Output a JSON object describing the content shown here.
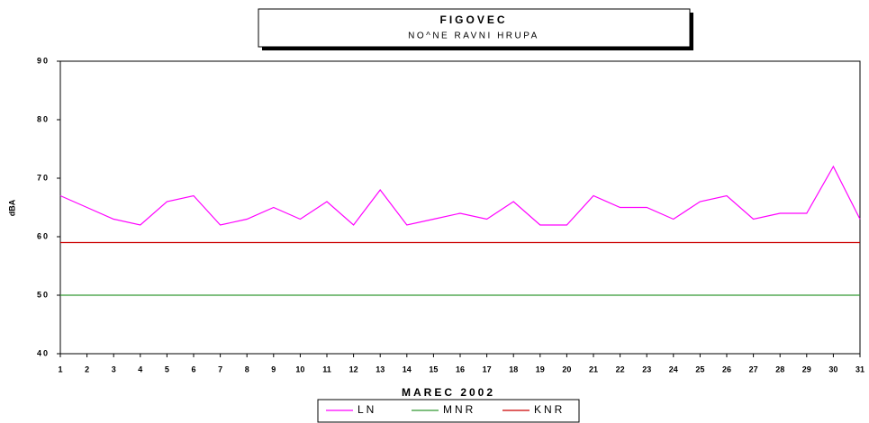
{
  "chart_data": {
    "type": "line",
    "title": "FIGOVEC",
    "subtitle": "NO^NE RAVNI HRUPA",
    "x_label": "MAREC 2002",
    "y_label": "dBA",
    "x": [
      1,
      2,
      3,
      4,
      5,
      6,
      7,
      8,
      9,
      10,
      11,
      12,
      13,
      14,
      15,
      16,
      17,
      18,
      19,
      20,
      21,
      22,
      23,
      24,
      25,
      26,
      27,
      28,
      29,
      30,
      31
    ],
    "series": [
      {
        "name": "LN",
        "color": "#ff00ff",
        "values": [
          67,
          65,
          63,
          62,
          66,
          67,
          62,
          63,
          65,
          63,
          66,
          62,
          68,
          62,
          63,
          64,
          63,
          66,
          62,
          62,
          67,
          65,
          65,
          63,
          66,
          67,
          63,
          64,
          64,
          72,
          63
        ]
      },
      {
        "name": "MNR",
        "color": "#339933",
        "values": [
          50,
          50,
          50,
          50,
          50,
          50,
          50,
          50,
          50,
          50,
          50,
          50,
          50,
          50,
          50,
          50,
          50,
          50,
          50,
          50,
          50,
          50,
          50,
          50,
          50,
          50,
          50,
          50,
          50,
          50,
          50
        ]
      },
      {
        "name": "KNR",
        "color": "#cc0000",
        "values": [
          59,
          59,
          59,
          59,
          59,
          59,
          59,
          59,
          59,
          59,
          59,
          59,
          59,
          59,
          59,
          59,
          59,
          59,
          59,
          59,
          59,
          59,
          59,
          59,
          59,
          59,
          59,
          59,
          59,
          59,
          59
        ]
      }
    ],
    "xlim": [
      1,
      31
    ],
    "xticks": [
      1,
      2,
      3,
      4,
      5,
      6,
      7,
      8,
      9,
      10,
      11,
      12,
      13,
      14,
      15,
      16,
      17,
      18,
      19,
      20,
      21,
      22,
      23,
      24,
      25,
      26,
      27,
      28,
      29,
      30,
      31
    ],
    "ylim": [
      40,
      90
    ],
    "yticks": [
      40,
      50,
      60,
      70,
      80,
      90
    ],
    "grid": false,
    "legend": "bottom"
  }
}
